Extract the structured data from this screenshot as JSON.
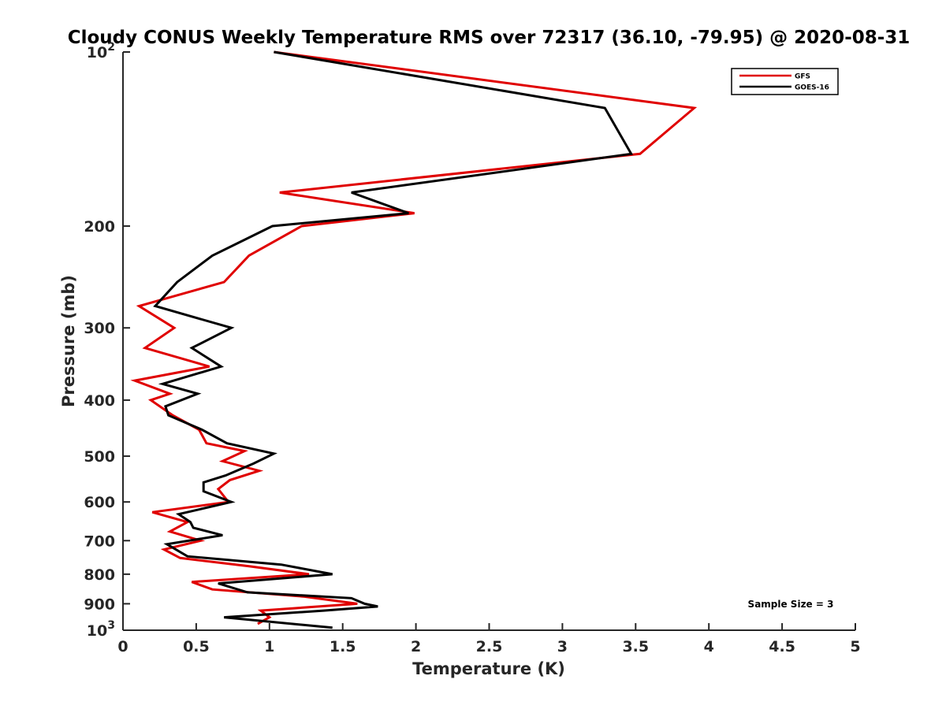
{
  "chart_data": {
    "type": "line",
    "title": "Cloudy CONUS Weekly Temperature RMS over 72317 (36.10, -79.95) @ 2020-08-31",
    "xlabel": "Temperature (K)",
    "ylabel": "Pressure (mb)",
    "xlim": [
      0,
      5
    ],
    "ylim": [
      100,
      1000
    ],
    "y_scale": "log",
    "y_reversed": true,
    "grid": false,
    "legend_position": "top-right",
    "annotation": "Sample Size = 3",
    "x_ticks": [
      {
        "value": 0,
        "label": "0"
      },
      {
        "value": 0.5,
        "label": "0.5"
      },
      {
        "value": 1,
        "label": "1"
      },
      {
        "value": 1.5,
        "label": "1.5"
      },
      {
        "value": 2,
        "label": "2"
      },
      {
        "value": 2.5,
        "label": "2.5"
      },
      {
        "value": 3,
        "label": "3"
      },
      {
        "value": 3.5,
        "label": "3.5"
      },
      {
        "value": 4,
        "label": "4"
      },
      {
        "value": 4.5,
        "label": "4.5"
      },
      {
        "value": 5,
        "label": "5"
      }
    ],
    "y_ticks": [
      {
        "value": 100,
        "base": "10",
        "exp": "2"
      },
      {
        "value": 200,
        "label": "200"
      },
      {
        "value": 300,
        "label": "300"
      },
      {
        "value": 400,
        "label": "400"
      },
      {
        "value": 500,
        "label": "500"
      },
      {
        "value": 600,
        "label": "600"
      },
      {
        "value": 700,
        "label": "700"
      },
      {
        "value": 800,
        "label": "800"
      },
      {
        "value": 900,
        "label": "900"
      },
      {
        "value": 1000,
        "base": "10",
        "exp": "3"
      }
    ],
    "series": [
      {
        "name": "GFS",
        "color": "#e00000",
        "x": [
          1.03,
          3.9,
          3.53,
          1.07,
          1.99,
          1.22,
          0.86,
          0.69,
          0.11,
          0.35,
          0.15,
          0.59,
          0.08,
          0.32,
          0.19,
          0.34,
          0.52,
          0.57,
          0.83,
          0.68,
          0.93,
          0.73,
          0.65,
          0.72,
          0.2,
          0.44,
          0.32,
          0.53,
          0.28,
          0.39,
          0.86,
          1.27,
          0.47,
          0.61,
          1.24,
          1.6,
          0.94,
          1.0,
          0.92
        ],
        "y": [
          100,
          125,
          150,
          175,
          190,
          200,
          225,
          250,
          275,
          300,
          325,
          350,
          370,
          390,
          400,
          425,
          450,
          475,
          490,
          510,
          530,
          550,
          570,
          600,
          625,
          650,
          675,
          700,
          725,
          750,
          775,
          800,
          825,
          850,
          875,
          900,
          925,
          950,
          975
        ]
      },
      {
        "name": "GOES-16",
        "color": "#000000",
        "x": [
          1.03,
          3.29,
          3.47,
          1.56,
          1.95,
          1.02,
          0.61,
          0.37,
          0.22,
          0.74,
          0.47,
          0.67,
          0.27,
          0.51,
          0.29,
          0.31,
          0.54,
          0.71,
          1.03,
          0.89,
          0.7,
          0.55,
          0.55,
          0.74,
          0.38,
          0.46,
          0.48,
          0.68,
          0.3,
          0.44,
          1.08,
          1.43,
          0.65,
          0.85,
          1.56,
          1.65,
          1.74,
          1.37,
          0.69,
          1.43
        ],
        "y": [
          100,
          125,
          150,
          175,
          190,
          200,
          225,
          250,
          275,
          300,
          325,
          350,
          375,
          390,
          410,
          425,
          450,
          475,
          495,
          515,
          540,
          555,
          575,
          600,
          630,
          650,
          665,
          685,
          710,
          745,
          770,
          800,
          830,
          860,
          880,
          900,
          910,
          925,
          950,
          990
        ]
      }
    ]
  }
}
